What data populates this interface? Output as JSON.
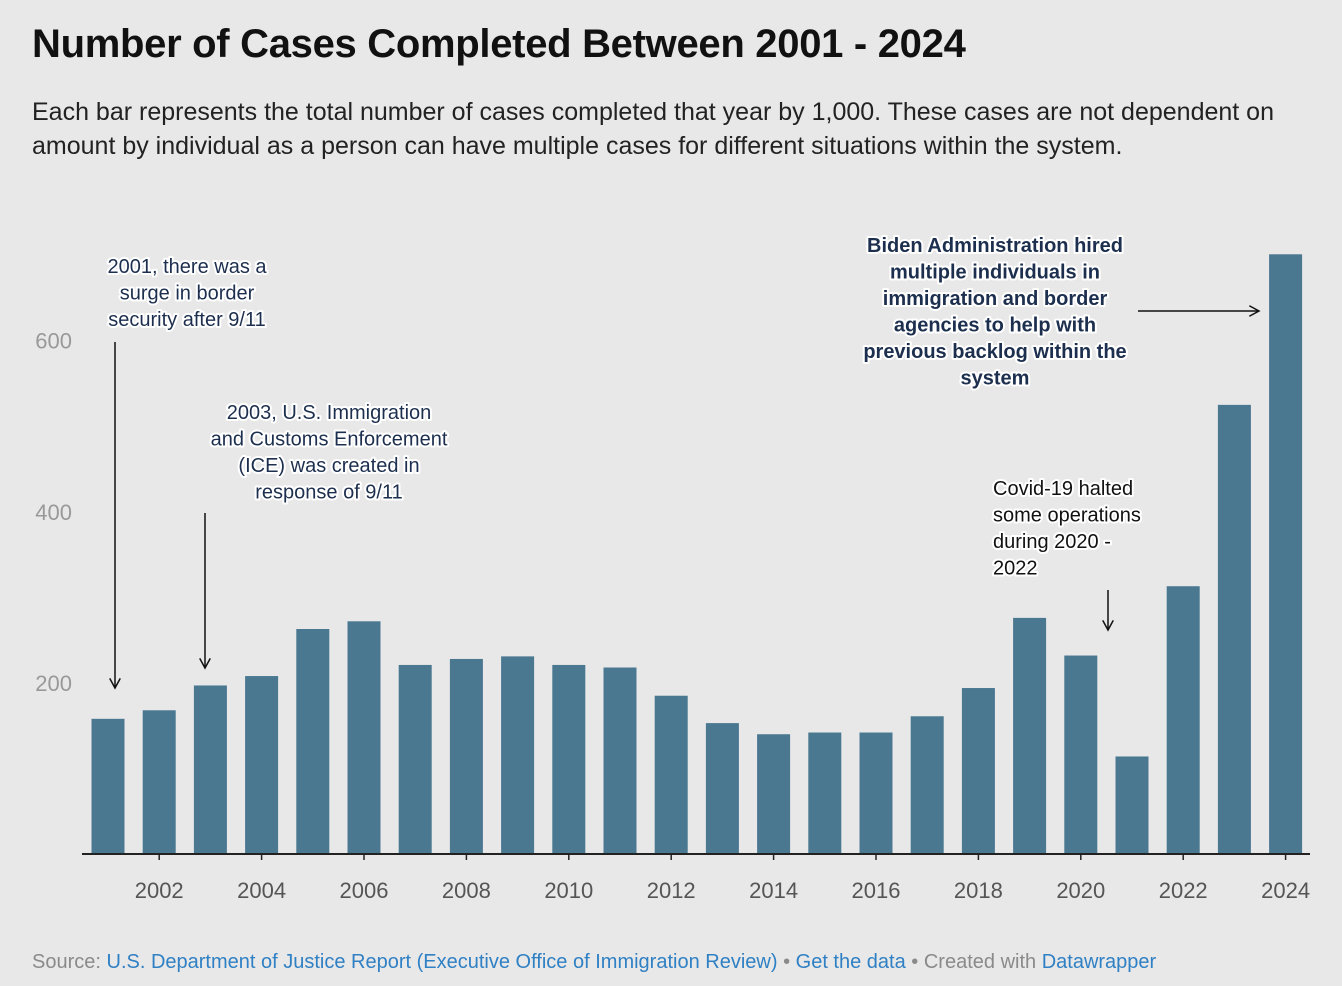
{
  "title": "Number of Cases Completed Between 2001 - 2024",
  "subtitle": "Each bar represents the total number of cases completed that year by 1,000. These cases are not dependent on amount by individual as a person can have multiple cases for different situations within the system.",
  "footer": {
    "source_prefix": "Source:",
    "source_link": "U.S. Department of Justice Report (Executive Office of Immigration Review)",
    "get_data": "Get the data",
    "created_with": "Created with",
    "datawrapper": "Datawrapper",
    "link_color": "#2f80c4"
  },
  "chart_data": {
    "type": "bar",
    "categories": [
      "2001",
      "2002",
      "2003",
      "2004",
      "2005",
      "2006",
      "2007",
      "2008",
      "2009",
      "2010",
      "2011",
      "2012",
      "2013",
      "2014",
      "2015",
      "2016",
      "2017",
      "2018",
      "2019",
      "2020",
      "2021",
      "2022",
      "2023",
      "2024"
    ],
    "values": [
      158,
      168,
      197,
      208,
      263,
      272,
      221,
      228,
      231,
      221,
      218,
      185,
      153,
      140,
      142,
      142,
      161,
      194,
      276,
      232,
      114,
      313,
      525,
      701
    ],
    "x_tick_labels": [
      "2002",
      "2004",
      "2006",
      "2008",
      "2010",
      "2012",
      "2014",
      "2016",
      "2018",
      "2020",
      "2022",
      "2024"
    ],
    "y_tick_labels": [
      "200",
      "400",
      "600"
    ],
    "ylim": [
      0,
      750
    ],
    "grid": false,
    "bar_color": "#4a7891",
    "annotations": [
      {
        "id": "2001",
        "lines": [
          "2001, there was a",
          "surge in border",
          "security after 9/11"
        ],
        "color": "#1d2f4e",
        "bold": false
      },
      {
        "id": "2003",
        "lines": [
          "2003, U.S. Immigration",
          "and Customs Enforcement",
          "(ICE) was created in",
          "response of 9/11"
        ],
        "color": "#1d2f4e",
        "bold": false
      },
      {
        "id": "covid",
        "lines": [
          "Covid-19 halted",
          "some operations",
          "during 2020 -",
          "2022"
        ],
        "color": "#111111",
        "bold": false
      },
      {
        "id": "biden",
        "lines": [
          "Biden Administration hired",
          "multiple individuals in",
          "immigration and border",
          "agencies to help with",
          "previous backlog within the",
          "system"
        ],
        "color": "#1d2f4e",
        "bold": true
      }
    ]
  }
}
